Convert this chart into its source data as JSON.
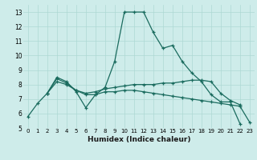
{
  "title": "",
  "xlabel": "Humidex (Indice chaleur)",
  "bg_color": "#ceecea",
  "line_color": "#1a6b5e",
  "grid_color": "#aed8d4",
  "xlim": [
    -0.5,
    23.5
  ],
  "ylim": [
    5,
    13.5
  ],
  "yticks": [
    5,
    6,
    7,
    8,
    9,
    10,
    11,
    12,
    13
  ],
  "xticks": [
    0,
    1,
    2,
    3,
    4,
    5,
    6,
    7,
    8,
    9,
    10,
    11,
    12,
    13,
    14,
    15,
    16,
    17,
    18,
    19,
    20,
    21,
    22,
    23
  ],
  "series": [
    {
      "x": [
        0,
        1,
        2,
        3,
        4,
        5,
        6,
        7,
        8,
        9,
        10,
        11,
        12,
        13,
        14,
        15,
        16,
        17,
        18,
        19,
        20,
        21,
        22
      ],
      "y": [
        5.8,
        6.7,
        7.4,
        8.5,
        8.2,
        7.5,
        6.4,
        7.3,
        7.8,
        9.6,
        13.0,
        13.0,
        13.0,
        11.6,
        10.5,
        10.7,
        9.6,
        8.8,
        8.2,
        7.3,
        6.8,
        6.8,
        5.3
      ]
    },
    {
      "x": [
        2,
        3,
        4,
        5,
        6,
        7,
        8,
        9,
        10,
        11,
        12,
        13,
        14,
        15,
        16,
        17,
        18,
        19,
        20,
        21,
        22
      ],
      "y": [
        7.4,
        8.4,
        8.1,
        7.6,
        7.4,
        7.5,
        7.7,
        7.8,
        7.9,
        8.0,
        8.0,
        8.0,
        8.1,
        8.1,
        8.2,
        8.3,
        8.3,
        8.2,
        7.4,
        6.9,
        6.6
      ]
    },
    {
      "x": [
        2,
        3,
        4,
        5,
        6,
        7,
        8,
        9,
        10,
        11,
        12,
        13,
        14,
        15,
        16,
        17,
        18,
        19,
        20,
        21,
        22,
        23
      ],
      "y": [
        7.4,
        8.2,
        8.0,
        7.6,
        7.3,
        7.3,
        7.5,
        7.5,
        7.6,
        7.6,
        7.5,
        7.4,
        7.3,
        7.2,
        7.1,
        7.0,
        6.9,
        6.8,
        6.7,
        6.6,
        6.5,
        5.4
      ]
    }
  ]
}
